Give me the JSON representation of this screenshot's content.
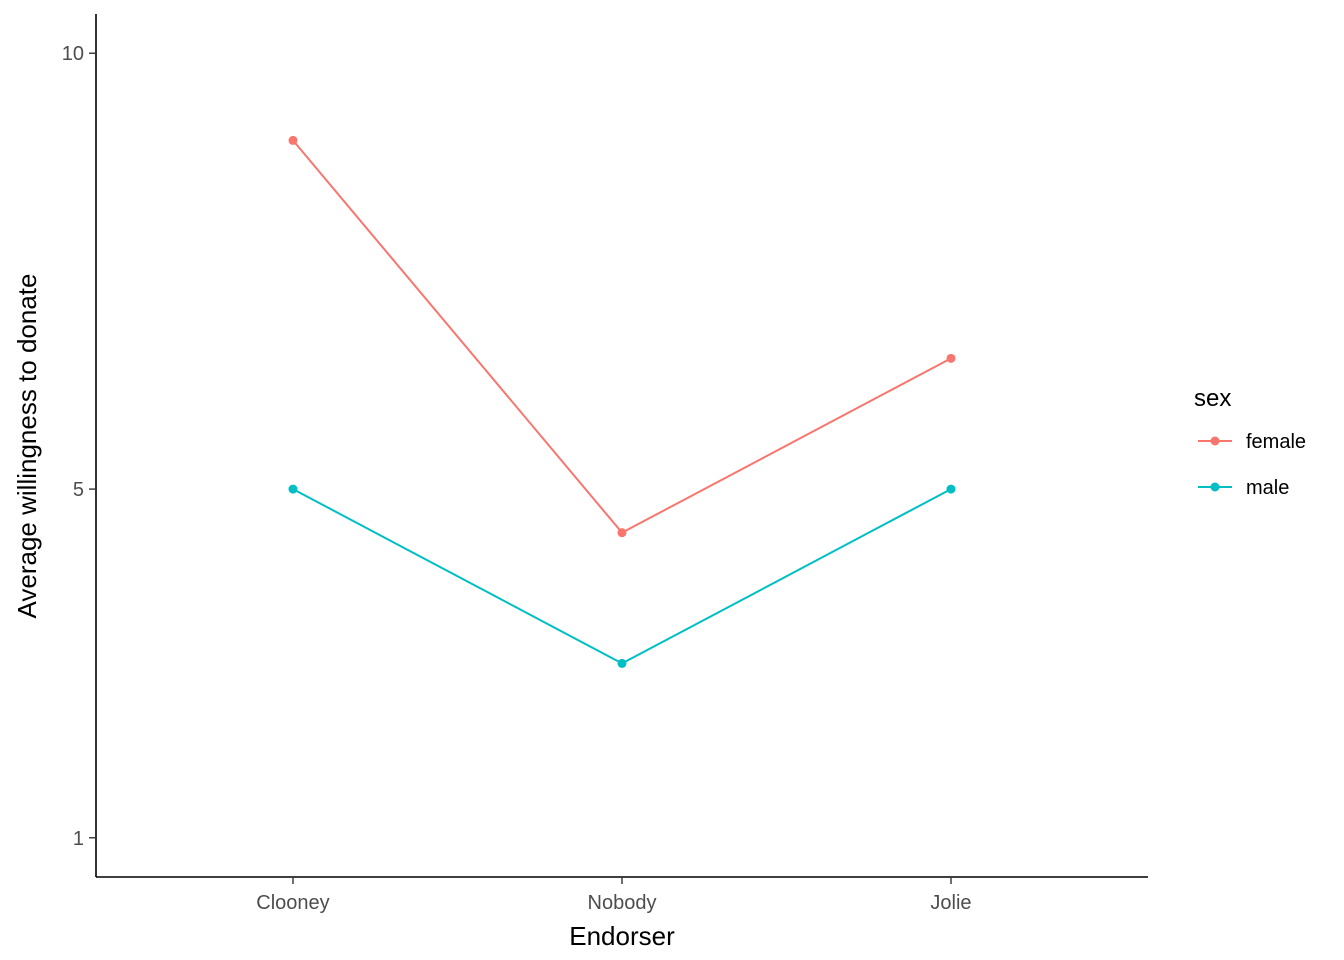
{
  "chart_data": {
    "type": "line",
    "xlabel": "Endorser",
    "ylabel": "Average willingness to donate",
    "categories": [
      "Clooney",
      "Nobody",
      "Jolie"
    ],
    "yticks": [
      1,
      5,
      10
    ],
    "ylim": [
      0.55,
      10.45
    ],
    "grid": false,
    "legend": {
      "title": "sex",
      "position": "right"
    },
    "series": [
      {
        "name": "female",
        "color": "#F8766D",
        "values": [
          9.0,
          4.5,
          6.5
        ]
      },
      {
        "name": "male",
        "color": "#00BFC4",
        "values": [
          5.0,
          3.0,
          5.0
        ]
      }
    ]
  }
}
